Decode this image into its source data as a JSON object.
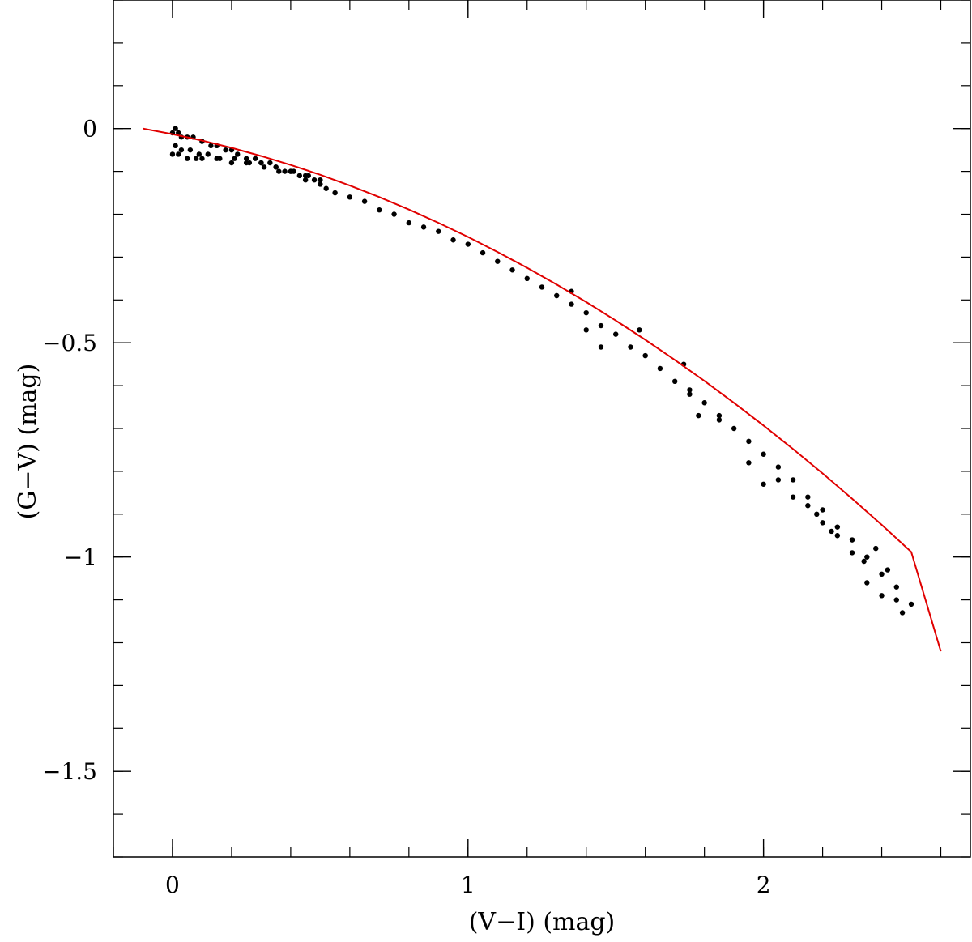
{
  "chart_data": {
    "type": "scatter",
    "title": "",
    "xlabel": "(V−I) (mag)",
    "ylabel": "(G−V) (mag)",
    "xlim": [
      -0.2,
      2.7
    ],
    "ylim": [
      -1.7,
      0.3
    ],
    "x_ticks": [
      {
        "value": 0,
        "label": "0"
      },
      {
        "value": 1,
        "label": "1"
      },
      {
        "value": 2,
        "label": "2"
      }
    ],
    "y_ticks": [
      {
        "value": 0,
        "label": "0"
      },
      {
        "value": -0.5,
        "label": "−0.5"
      },
      {
        "value": -1,
        "label": "−1"
      },
      {
        "value": -1.5,
        "label": "−1.5"
      }
    ],
    "x_minor_step": 0.2,
    "y_minor_step": 0.1,
    "grid": false,
    "legend": "none",
    "series": [
      {
        "kind": "points",
        "color": "#000000",
        "x": [
          0.0,
          0.01,
          0.02,
          0.03,
          0.05,
          0.07,
          0.1,
          0.13,
          0.15,
          0.18,
          0.2,
          0.22,
          0.25,
          0.28,
          0.3,
          0.33,
          0.35,
          0.38,
          0.4,
          0.43,
          0.45,
          0.48,
          0.5,
          0.52,
          0.55,
          0.6,
          0.65,
          0.7,
          0.75,
          0.8,
          0.85,
          0.9,
          0.95,
          1.0,
          1.05,
          1.1,
          1.15,
          1.2,
          1.25,
          1.3,
          1.35,
          1.4,
          1.45,
          1.5,
          1.55,
          1.6,
          1.65,
          1.7,
          1.75,
          1.8,
          1.85,
          1.9,
          1.95,
          2.0,
          2.05,
          2.1,
          2.15,
          2.2,
          2.25,
          2.3,
          2.35,
          2.4,
          2.45,
          2.5,
          0.0,
          0.02,
          0.05,
          0.08,
          0.1,
          0.15,
          0.2,
          0.25,
          0.3,
          0.35,
          0.4,
          0.45,
          0.5,
          0.01,
          0.03,
          0.06,
          0.09,
          0.12,
          0.16,
          0.21,
          0.26,
          0.31,
          0.36,
          0.41,
          0.46,
          1.35,
          1.4,
          1.45,
          1.58,
          1.73,
          1.75,
          1.78,
          1.85,
          1.95,
          2.0,
          2.05,
          2.1,
          2.15,
          2.2,
          2.25,
          2.3,
          2.35,
          2.4,
          2.45,
          2.47,
          2.3,
          2.34,
          2.38,
          2.42,
          2.18,
          2.23
        ],
        "y": [
          -0.01,
          0.0,
          -0.01,
          -0.02,
          -0.02,
          -0.02,
          -0.03,
          -0.04,
          -0.04,
          -0.05,
          -0.05,
          -0.06,
          -0.07,
          -0.07,
          -0.08,
          -0.08,
          -0.09,
          -0.1,
          -0.1,
          -0.11,
          -0.12,
          -0.12,
          -0.13,
          -0.14,
          -0.15,
          -0.16,
          -0.17,
          -0.19,
          -0.2,
          -0.22,
          -0.23,
          -0.24,
          -0.26,
          -0.27,
          -0.29,
          -0.31,
          -0.33,
          -0.35,
          -0.37,
          -0.39,
          -0.41,
          -0.43,
          -0.46,
          -0.48,
          -0.51,
          -0.53,
          -0.56,
          -0.59,
          -0.61,
          -0.64,
          -0.67,
          -0.7,
          -0.73,
          -0.76,
          -0.79,
          -0.82,
          -0.86,
          -0.89,
          -0.93,
          -0.96,
          -1.0,
          -1.04,
          -1.07,
          -1.11,
          -0.06,
          -0.06,
          -0.07,
          -0.07,
          -0.07,
          -0.07,
          -0.08,
          -0.08,
          -0.08,
          -0.09,
          -0.1,
          -0.11,
          -0.12,
          -0.04,
          -0.05,
          -0.05,
          -0.06,
          -0.06,
          -0.07,
          -0.07,
          -0.08,
          -0.09,
          -0.1,
          -0.1,
          -0.11,
          -0.38,
          -0.47,
          -0.51,
          -0.47,
          -0.55,
          -0.62,
          -0.67,
          -0.68,
          -0.78,
          -0.83,
          -0.82,
          -0.86,
          -0.88,
          -0.92,
          -0.95,
          -0.99,
          -1.06,
          -1.09,
          -1.1,
          -1.13,
          -0.96,
          -1.01,
          -0.98,
          -1.03,
          -0.9,
          -0.94
        ]
      },
      {
        "kind": "line",
        "color": "#e00000",
        "x": [
          -0.1,
          0.0,
          0.1,
          0.2,
          0.3,
          0.4,
          0.5,
          0.6,
          0.7,
          0.8,
          0.9,
          1.0,
          1.1,
          1.2,
          1.3,
          1.4,
          1.5,
          1.6,
          1.7,
          1.8,
          1.9,
          2.0,
          2.1,
          2.2,
          2.3,
          2.4,
          2.5,
          2.6
        ],
        "y": [
          0.0,
          -0.013,
          -0.028,
          -0.045,
          -0.064,
          -0.085,
          -0.108,
          -0.133,
          -0.16,
          -0.189,
          -0.22,
          -0.253,
          -0.288,
          -0.325,
          -0.364,
          -0.405,
          -0.448,
          -0.493,
          -0.54,
          -0.589,
          -0.64,
          -0.693,
          -0.748,
          -0.805,
          -0.864,
          -0.925,
          -0.988,
          -1.22
        ]
      }
    ]
  }
}
